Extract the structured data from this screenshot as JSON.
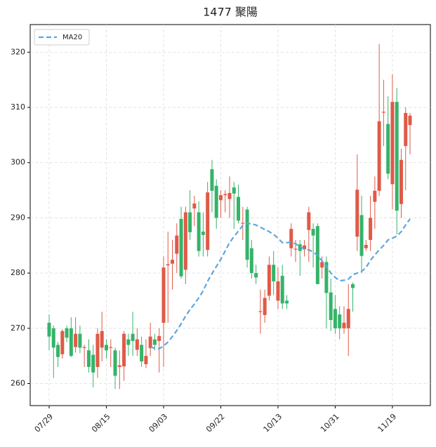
{
  "chart_data": {
    "type": "candlestick",
    "title": "1477 聚陽",
    "categories": [
      "07/29",
      null,
      null,
      null,
      null,
      null,
      null,
      null,
      null,
      null,
      null,
      null,
      null,
      "08/15",
      null,
      null,
      null,
      null,
      null,
      null,
      null,
      null,
      null,
      null,
      null,
      null,
      "09/03",
      null,
      null,
      null,
      null,
      null,
      null,
      null,
      null,
      null,
      null,
      null,
      null,
      "09/22",
      null,
      null,
      null,
      null,
      null,
      null,
      null,
      null,
      null,
      null,
      null,
      null,
      "10/13",
      null,
      null,
      null,
      null,
      null,
      null,
      null,
      null,
      null,
      null,
      null,
      null,
      "10/31",
      null,
      null,
      null,
      null,
      null,
      null,
      null,
      null,
      null,
      null,
      null,
      null,
      "11/19",
      null,
      null,
      null,
      null
    ],
    "open": [
      271,
      270,
      267,
      265.3,
      270,
      270,
      266.6,
      269,
      266.5,
      266,
      265.2,
      263,
      266.5,
      267,
      266.5,
      266,
      263,
      263.1,
      268,
      269,
      266.1,
      267,
      263.5,
      266.4,
      268,
      267.7,
      271,
      281.4,
      281.7,
      283.5,
      289.8,
      280.6,
      291,
      291.7,
      291,
      287.5,
      284.2,
      298.8,
      295.8,
      293.2,
      294.1,
      293.4,
      295.5,
      293.8,
      289,
      291.5,
      284.5,
      280,
      273,
      272.4,
      275.9,
      281.5,
      275,
      279.5,
      275,
      284.5,
      284.3,
      285.2,
      284.3,
      287.8,
      288,
      288.5,
      281,
      282,
      276.5,
      273.5,
      272.5,
      270,
      270,
      278,
      286.6,
      290.5,
      284.5,
      286,
      292.9,
      294.9,
      309.1,
      307,
      296.1,
      311,
      292.5,
      303,
      306.8
    ],
    "high": [
      272.5,
      270.5,
      267.5,
      269.8,
      270.5,
      272,
      272,
      270.5,
      267,
      268,
      267,
      270,
      273,
      268,
      268,
      266.5,
      266,
      269.5,
      269,
      273,
      270,
      268.5,
      268,
      271,
      269,
      270,
      283,
      287.5,
      286,
      289,
      292,
      292,
      295,
      294,
      293,
      291,
      296.5,
      300.5,
      297,
      295,
      295,
      297.5,
      296.5,
      296,
      292,
      292,
      286,
      281.5,
      277,
      277,
      283,
      284,
      281,
      281.5,
      276,
      289,
      286,
      286,
      286,
      292,
      289,
      289,
      283,
      283,
      279,
      276,
      274,
      274,
      278,
      278.3,
      301.5,
      294,
      286,
      294,
      297.5,
      321.5,
      315,
      312,
      316,
      313.5,
      302.5,
      310,
      309
    ],
    "low": [
      266,
      261,
      263,
      264.5,
      267.5,
      264.8,
      265.6,
      265.5,
      263,
      262,
      259.3,
      261,
      264,
      264.5,
      263,
      259,
      259,
      260.5,
      265,
      265,
      265,
      263,
      262.8,
      265,
      266,
      262,
      263,
      271,
      277,
      280,
      279,
      278,
      286,
      288.5,
      283,
      283,
      283,
      291,
      288,
      290,
      291,
      290,
      288,
      289,
      286,
      281,
      279,
      278,
      269,
      271,
      275,
      276,
      273.5,
      273.5,
      273.5,
      283,
      282,
      279.5,
      283,
      282,
      281,
      278,
      279,
      270,
      269.5,
      269,
      268,
      269,
      265,
      273,
      284,
      280,
      284,
      284,
      288,
      294,
      303,
      297,
      291.5,
      287,
      290,
      295,
      301.5
    ],
    "close": [
      268.5,
      266.5,
      264.8,
      269.5,
      268.3,
      265,
      269,
      266.5,
      266.6,
      263,
      262,
      269,
      269.5,
      266,
      266.6,
      261.4,
      263.3,
      269,
      267,
      267.7,
      268,
      264,
      265,
      268.5,
      267,
      268.6,
      281,
      281.6,
      282.4,
      286.8,
      279.4,
      291,
      287.4,
      292.6,
      284,
      286.9,
      294.6,
      294.9,
      290,
      294.1,
      294.3,
      294.5,
      294.4,
      289.5,
      289.1,
      282.4,
      280,
      279.2,
      273.1,
      275.5,
      281.5,
      278.5,
      278.5,
      274.5,
      274.5,
      288,
      284.4,
      284,
      285,
      291,
      286.8,
      278,
      282,
      276.4,
      271.5,
      270,
      270,
      271,
      273.5,
      277.3,
      295.1,
      283.1,
      285.1,
      290,
      294.9,
      307.5,
      309.2,
      298,
      311,
      291.3,
      300.5,
      309,
      308.5
    ],
    "up_color": "#e05a47",
    "down_color": "#35b36a",
    "series": [
      {
        "name": "MA20",
        "color": "#5ea6e0",
        "values": [
          null,
          null,
          null,
          null,
          null,
          null,
          null,
          null,
          null,
          null,
          null,
          null,
          null,
          null,
          null,
          null,
          null,
          null,
          null,
          null,
          null,
          null,
          null,
          266.6,
          266.4,
          266.3,
          266.8,
          267.5,
          268.5,
          269.6,
          270.8,
          272.2,
          273.4,
          274.4,
          275.5,
          276.8,
          278.5,
          279.9,
          281.2,
          282.5,
          284,
          285.5,
          286.6,
          287.6,
          288.6,
          289,
          288.9,
          288.7,
          288.3,
          287.9,
          287.5,
          287,
          286.3,
          285.5,
          285.5,
          285.6,
          285.3,
          284.8,
          284.3,
          284.2,
          283.8,
          283.2,
          282.2,
          281.2,
          280,
          279.2,
          278.6,
          278.7,
          278.9,
          279.7,
          280,
          280.3,
          281,
          282.3,
          283.3,
          284.2,
          285,
          286,
          286.3,
          286.7,
          287.5,
          288.7,
          289.8
        ]
      }
    ],
    "ylim": [
      256,
      325
    ],
    "yticks": [
      260,
      270,
      280,
      290,
      300,
      310,
      320
    ],
    "grid": true,
    "legend": "upper left"
  }
}
